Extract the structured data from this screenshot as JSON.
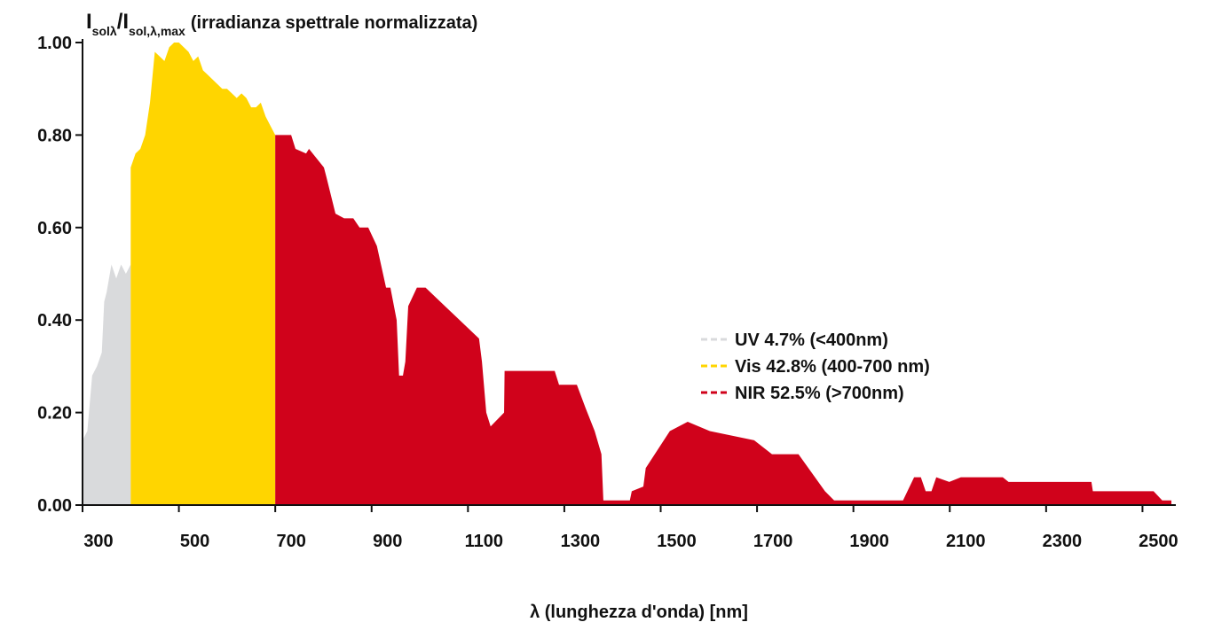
{
  "chart_data": {
    "type": "area",
    "y_label": {
      "main": "I",
      "sub": "solλ",
      "main2": "/I",
      "sub2": "sol,λ,max",
      "text": "(irradianza spettrale normalizzata)"
    },
    "x_label": "λ (lunghezza d'onda) [nm]",
    "xlim": [
      300,
      2560
    ],
    "xticks": [
      300,
      500,
      700,
      900,
      1100,
      1300,
      1500,
      1700,
      1900,
      2100,
      2300,
      2500
    ],
    "ylim": [
      0,
      1.0
    ],
    "yticks": [
      {
        "value": 0,
        "label": "0.00"
      },
      {
        "value": 0.2,
        "label": "0.20"
      },
      {
        "value": 0.4,
        "label": "0.40"
      },
      {
        "value": 0.6,
        "label": "0.60"
      },
      {
        "value": 0.8,
        "label": "0.80"
      },
      {
        "value": 1.0,
        "label": "1.00"
      }
    ],
    "legend": "right",
    "series": [
      {
        "name": "UV 4.7% (<400nm)",
        "color": "#d9dadc",
        "x": [
          300,
          310,
          320,
          330,
          340,
          345,
          350,
          360,
          370,
          380,
          390,
          400
        ],
        "values": [
          0.14,
          0.16,
          0.28,
          0.3,
          0.33,
          0.44,
          0.46,
          0.52,
          0.49,
          0.52,
          0.5,
          0.52
        ]
      },
      {
        "name": "Vis 42.8% (400-700 nm)",
        "color": "#ffd500",
        "x": [
          400,
          410,
          420,
          430,
          440,
          450,
          460,
          470,
          480,
          490,
          500,
          510,
          520,
          530,
          540,
          550,
          560,
          570,
          580,
          590,
          600,
          610,
          620,
          630,
          640,
          650,
          660,
          670,
          680,
          690,
          700
        ],
        "values": [
          0.73,
          0.76,
          0.77,
          0.8,
          0.87,
          0.98,
          0.97,
          0.96,
          0.99,
          1.0,
          1.0,
          0.99,
          0.98,
          0.96,
          0.97,
          0.94,
          0.93,
          0.92,
          0.91,
          0.9,
          0.9,
          0.89,
          0.88,
          0.89,
          0.88,
          0.86,
          0.86,
          0.87,
          0.84,
          0.82,
          0.8
        ]
      },
      {
        "name": "NIR 52.5% (>700nm)",
        "color": "#d0021b",
        "x": [
          700,
          733,
          742,
          764,
          770,
          801,
          806,
          825,
          843,
          862,
          875,
          893,
          911,
          930,
          939,
          952,
          957,
          965,
          970,
          976,
          994,
          1012,
          1123,
          1129,
          1138,
          1147,
          1175,
          1176,
          1280,
          1289,
          1326,
          1344,
          1363,
          1377,
          1381,
          1436,
          1440,
          1464,
          1469,
          1519,
          1556,
          1602,
          1694,
          1731,
          1786,
          1841,
          1860,
          2003,
          2026,
          2040,
          2050,
          2062,
          2072,
          2099,
          2123,
          2210,
          2222,
          2394,
          2397,
          2523,
          2541,
          2560
        ],
        "values": [
          0.8,
          0.8,
          0.77,
          0.76,
          0.77,
          0.73,
          0.71,
          0.63,
          0.62,
          0.62,
          0.6,
          0.6,
          0.56,
          0.47,
          0.47,
          0.4,
          0.28,
          0.28,
          0.31,
          0.43,
          0.47,
          0.47,
          0.36,
          0.31,
          0.2,
          0.17,
          0.2,
          0.29,
          0.29,
          0.26,
          0.26,
          0.21,
          0.16,
          0.11,
          0.01,
          0.01,
          0.03,
          0.04,
          0.08,
          0.16,
          0.18,
          0.16,
          0.14,
          0.11,
          0.11,
          0.03,
          0.01,
          0.01,
          0.06,
          0.06,
          0.03,
          0.03,
          0.06,
          0.05,
          0.06,
          0.06,
          0.05,
          0.05,
          0.03,
          0.03,
          0.01,
          0.01
        ]
      }
    ]
  }
}
